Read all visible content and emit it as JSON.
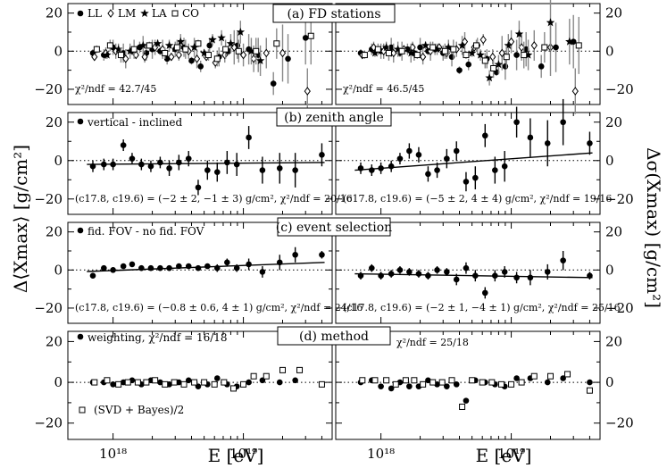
{
  "axes": {
    "x_label": "E [eV]",
    "y_left_label": "Δ⟨Xmax⟩ [g/cm²]",
    "y_right_label": "Δσ(Xmax) [g/cm²]",
    "x_ticks": [
      "10¹⁸",
      "10¹⁹"
    ],
    "y_ticks": [
      "20",
      "0",
      "−20"
    ]
  },
  "chart_data": [
    {
      "type": "scatter",
      "title": "(a) FD stations",
      "ylim": [
        -28,
        25
      ],
      "xscale": "log",
      "legend": [
        "LL",
        "LM",
        "LA",
        "CO"
      ],
      "left": {
        "note": "χ²/ndf = 42.7/45",
        "series": [
          {
            "name": "LL",
            "x": [
              0.7,
              0.85,
              1.0,
              1.2,
              1.4,
              1.6,
              1.8,
              2.0,
              2.3,
              2.6,
              3.0,
              3.5,
              4.0,
              4.7,
              5.5,
              6.5,
              7.7,
              9.0,
              11,
              13,
              17,
              22,
              30
            ],
            "y": [
              -1,
              -2,
              2,
              -1,
              0,
              2,
              -1,
              1,
              0,
              -4,
              1,
              2,
              -5,
              -8,
              3,
              -3,
              0,
              3,
              1,
              -2,
              -17,
              -4,
              7
            ]
          },
          {
            "name": "LM",
            "x": [
              0.72,
              0.88,
              1.05,
              1.25,
              1.5,
              1.75,
              2.1,
              2.4,
              2.8,
              3.2,
              3.8,
              4.4,
              5.2,
              6.1,
              7.2,
              8.5,
              10,
              12,
              15,
              20,
              31
            ],
            "y": [
              -3,
              -1,
              0,
              -4,
              -2,
              -3,
              2,
              1,
              -3,
              -2,
              0,
              -4,
              -3,
              -6,
              -2,
              2,
              -2,
              -4,
              -1,
              -1,
              -21
            ]
          },
          {
            "name": "LA",
            "x": [
              0.9,
              1.1,
              1.35,
              1.7,
              2.2,
              2.7,
              3.3,
              4.2,
              5.0,
              5.8,
              6.8,
              8.0,
              9.5,
              11.5,
              13.5
            ],
            "y": [
              -2,
              1,
              0,
              3,
              4,
              3,
              5,
              2,
              -1,
              6,
              7,
              4,
              10,
              0,
              -5
            ]
          },
          {
            "name": "CO",
            "x": [
              0.75,
              0.95,
              1.15,
              1.45,
              1.9,
              2.5,
              3.1,
              3.6,
              4.5,
              5.4,
              6.3,
              7.3,
              9.2,
              12.5,
              18,
              33
            ],
            "y": [
              1,
              3,
              -2,
              1,
              3,
              -1,
              2,
              1,
              4,
              -2,
              -4,
              1,
              0,
              0,
              4,
              8
            ]
          }
        ]
      },
      "right": {
        "note": "χ²/ndf = 46.5/45",
        "series": [
          {
            "name": "LL",
            "x": [
              0.7,
              0.85,
              1.0,
              1.2,
              1.4,
              1.6,
              1.8,
              2.0,
              2.3,
              2.6,
              3.0,
              3.5,
              4.0,
              4.7,
              5.5,
              6.5,
              7.7,
              9.0,
              11,
              13,
              17,
              22,
              30
            ],
            "y": [
              -1,
              1,
              0,
              2,
              -1,
              1,
              -1,
              2,
              0,
              1,
              -1,
              -3,
              -10,
              -7,
              3,
              -4,
              -11,
              -8,
              -2,
              1,
              -8,
              2,
              5
            ]
          },
          {
            "name": "LM",
            "x": [
              0.72,
              0.88,
              1.05,
              1.25,
              1.5,
              1.75,
              2.1,
              2.4,
              2.8,
              3.2,
              3.8,
              4.4,
              5.2,
              6.1,
              7.2,
              8.5,
              10,
              12,
              15,
              20,
              31
            ],
            "y": [
              -2,
              2,
              0,
              -1,
              1,
              2,
              -3,
              0,
              2,
              -1,
              1,
              5,
              2,
              6,
              -3,
              -1,
              5,
              2,
              3,
              2,
              -21
            ]
          },
          {
            "name": "LA",
            "x": [
              0.9,
              1.1,
              1.35,
              1.7,
              2.2,
              2.7,
              3.3,
              4.2,
              5.0,
              5.8,
              6.8,
              8.0,
              9.5,
              11.5,
              13.5,
              20,
              28
            ],
            "y": [
              -1,
              2,
              1,
              -1,
              3,
              1,
              2,
              3,
              -1,
              -2,
              -14,
              -7,
              3,
              9,
              -2,
              15,
              5
            ]
          },
          {
            "name": "CO",
            "x": [
              0.75,
              0.95,
              1.15,
              1.45,
              1.9,
              2.5,
              3.1,
              3.6,
              4.5,
              5.4,
              6.3,
              7.3,
              9.2,
              12.5,
              18,
              33
            ],
            "y": [
              -2,
              1,
              -1,
              0,
              -2,
              2,
              0,
              1,
              -2,
              3,
              -5,
              -9,
              -3,
              -2,
              2,
              3
            ]
          }
        ]
      }
    },
    {
      "type": "scatter",
      "title": "(b) zenith angle",
      "ylim": [
        -28,
        25
      ],
      "legend": [
        "vertical - inclined"
      ],
      "left": {
        "note": "(c17.8, c19.6) = (−2 ± 2, −1 ± 3) g/cm², χ²/ndf = 20/16",
        "points": {
          "x": [
            0.7,
            0.85,
            1.0,
            1.2,
            1.4,
            1.65,
            1.95,
            2.3,
            2.7,
            3.2,
            3.8,
            4.5,
            5.3,
            6.3,
            7.5,
            8.9,
            11,
            14,
            19,
            25,
            40
          ],
          "y": [
            -3,
            -2,
            -2,
            8,
            1,
            -2,
            -3,
            -1,
            -4,
            -1,
            1,
            -14,
            -5,
            -6,
            -1,
            -2,
            12,
            -5,
            -4,
            -5,
            3
          ],
          "err": [
            3,
            3,
            3,
            3,
            3,
            3,
            3,
            3,
            4,
            4,
            4,
            4,
            5,
            5,
            6,
            6,
            6,
            7,
            8,
            9,
            6
          ]
        },
        "fit": {
          "x": [
            0.63,
            42
          ],
          "y": [
            -2.0,
            -1.0
          ]
        }
      },
      "right": {
        "note": "(c17.8, c19.6) = (−5 ± 2, 4 ± 4) g/cm², χ²/ndf = 19/16",
        "points": {
          "x": [
            0.7,
            0.85,
            1.0,
            1.2,
            1.4,
            1.65,
            1.95,
            2.3,
            2.7,
            3.2,
            3.8,
            4.5,
            5.3,
            6.3,
            7.5,
            8.9,
            11,
            14,
            19,
            25,
            40
          ],
          "y": [
            -4,
            -5,
            -4,
            -3,
            1,
            5,
            3,
            -7,
            -5,
            1,
            5,
            -11,
            -9,
            13,
            -5,
            -3,
            20,
            12,
            9,
            20,
            9
          ],
          "err": [
            3,
            3,
            3,
            3,
            3,
            4,
            4,
            4,
            4,
            5,
            5,
            5,
            6,
            6,
            7,
            8,
            8,
            10,
            12,
            12,
            6
          ]
        },
        "fit": {
          "x": [
            0.63,
            42
          ],
          "y": [
            -5.0,
            4.0
          ]
        }
      }
    },
    {
      "type": "scatter",
      "title": "(c) event selection",
      "ylim": [
        -28,
        25
      ],
      "legend": [
        "fid. FOV - no fid. FOV"
      ],
      "left": {
        "note": "(c17.8, c19.6) = (−0.8 ± 0.6, 4 ± 1) g/cm², χ²/ndf = 24/16",
        "points": {
          "x": [
            0.7,
            0.85,
            1.0,
            1.2,
            1.4,
            1.65,
            1.95,
            2.3,
            2.7,
            3.2,
            3.8,
            4.5,
            5.3,
            6.3,
            7.5,
            8.9,
            11,
            14,
            19,
            25,
            40
          ],
          "y": [
            -3,
            1,
            0,
            2,
            3,
            1,
            1,
            1,
            1,
            2,
            2,
            1,
            2,
            1,
            4,
            1,
            3,
            -1,
            4,
            8,
            8
          ],
          "err": [
            1,
            1,
            1,
            1,
            1,
            1,
            1,
            1,
            1,
            1,
            1,
            1,
            1,
            2,
            2,
            2,
            3,
            3,
            4,
            4,
            2
          ]
        },
        "fit": {
          "x": [
            0.63,
            42
          ],
          "y": [
            -0.8,
            4.0
          ]
        }
      },
      "right": {
        "note": "(c17.8, c19.6) = (−2 ± 1, −4 ± 1) g/cm², χ²/ndf = 25/16",
        "points": {
          "x": [
            0.7,
            0.85,
            1.0,
            1.2,
            1.4,
            1.65,
            1.95,
            2.3,
            2.7,
            3.2,
            3.8,
            4.5,
            5.3,
            6.3,
            7.5,
            8.9,
            11,
            14,
            19,
            25,
            40
          ],
          "y": [
            -3,
            1,
            -3,
            -2,
            0,
            -1,
            -2,
            -3,
            0,
            -1,
            -5,
            1,
            -3,
            -12,
            -3,
            -1,
            -4,
            -4,
            -1,
            5,
            -3
          ],
          "err": [
            2,
            2,
            2,
            2,
            2,
            2,
            2,
            2,
            2,
            2,
            3,
            3,
            3,
            3,
            3,
            3,
            3,
            4,
            4,
            5,
            2
          ]
        },
        "fit": {
          "x": [
            0.63,
            42
          ],
          "y": [
            -2.0,
            -4.0
          ]
        }
      }
    },
    {
      "type": "scatter",
      "title": "(d) method",
      "ylim": [
        -28,
        25
      ],
      "legend": [
        "weighting, χ²/ndf = 16/18",
        "(SVD + Bayes)/2"
      ],
      "left": {
        "series": [
          {
            "name": "weighting",
            "x": [
              0.7,
              0.85,
              1.0,
              1.2,
              1.4,
              1.65,
              1.95,
              2.3,
              2.7,
              3.2,
              3.8,
              4.5,
              5.3,
              6.3,
              7.5,
              8.9,
              11,
              14,
              19,
              25,
              40
            ],
            "y": [
              0,
              0,
              -1,
              0,
              1,
              -1,
              1,
              0,
              -1,
              0,
              1,
              -2,
              -1,
              2,
              -1,
              -2,
              0,
              1,
              0,
              1,
              -1
            ]
          },
          {
            "name": "(SVD + Bayes)/2",
            "x": [
              0.72,
              0.9,
              1.1,
              1.3,
              1.55,
              1.8,
              2.1,
              2.5,
              2.95,
              3.5,
              4.2,
              5.0,
              6.0,
              7.1,
              8.4,
              10,
              12,
              15,
              20,
              27,
              40
            ],
            "y": [
              0,
              1,
              -1,
              0,
              0,
              0,
              1,
              -1,
              0,
              -1,
              0,
              0,
              -1,
              0,
              -3,
              -1,
              3,
              3,
              6,
              6,
              -1
            ]
          }
        ]
      },
      "right": {
        "note": "χ²/ndf = 25/18",
        "series": [
          {
            "name": "weighting",
            "x": [
              0.7,
              0.85,
              1.0,
              1.2,
              1.4,
              1.65,
              1.95,
              2.3,
              2.7,
              3.2,
              3.8,
              4.5,
              5.3,
              6.3,
              7.5,
              8.9,
              11,
              14,
              19,
              25,
              40
            ],
            "y": [
              0,
              1,
              -2,
              -3,
              0,
              -2,
              -2,
              1,
              -1,
              -2,
              -1,
              -9,
              1,
              0,
              -1,
              -2,
              2,
              2,
              0,
              2,
              0
            ]
          },
          {
            "name": "(SVD + Bayes)/2",
            "x": [
              0.72,
              0.9,
              1.1,
              1.3,
              1.55,
              1.8,
              2.1,
              2.5,
              2.95,
              3.5,
              4.2,
              5.0,
              6.0,
              7.1,
              8.4,
              10,
              12,
              15,
              20,
              27,
              40
            ],
            "y": [
              1,
              1,
              1,
              -1,
              1,
              1,
              -1,
              0,
              0,
              1,
              -12,
              1,
              0,
              0,
              -1,
              -1,
              0,
              3,
              3,
              4,
              -4
            ]
          }
        ]
      }
    }
  ]
}
